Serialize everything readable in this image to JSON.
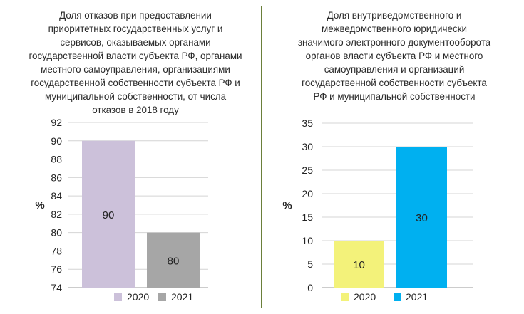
{
  "chart_data": [
    {
      "type": "bar",
      "title": "Доля отказов при предоставлении приоритетных государственных услуг и сервисов, оказываемых органами государственной власти субъекта РФ, органами местного самоуправления, организациями государственной собственности субъекта РФ и муниципальной собственности,  от числа отказов в 2018 году",
      "title_lines": [
        "Доля отказов при предоставлении",
        "приоритетных государственных услуг и",
        "сервисов, оказываемых органами",
        "государственной власти субъекта РФ, органами",
        "местного самоуправления, организациями",
        "государственной собственности субъекта РФ и",
        "муниципальной собственности,  от числа",
        "отказов в 2018 году"
      ],
      "ylabel": "%",
      "ylim": [
        74,
        92
      ],
      "yticks": [
        "92",
        "90",
        "88",
        "86",
        "84",
        "82",
        "80",
        "78",
        "76",
        "74"
      ],
      "series": [
        {
          "name": "2020",
          "value": 90,
          "label": "90",
          "color": "#ccc1da"
        },
        {
          "name": "2021",
          "value": 80,
          "label": "80",
          "color": "#a6a6a6"
        }
      ],
      "grid": true
    },
    {
      "type": "bar",
      "title": "Доля внутриведомственного  и межведомственного юридически значимого электронного документооборота органов власти субъекта РФ и местного самоуправления и организаций государственной собственности субъекта РФ и муниципальной собственности",
      "title_lines": [
        "Доля внутриведомственного  и",
        "межведомственного юридически",
        "значимого электронного документооборота",
        "органов власти субъекта РФ и местного",
        "самоуправления и организаций",
        "государственной собственности субъекта",
        "РФ и муниципальной собственности"
      ],
      "ylabel": "%",
      "ylim": [
        0,
        35
      ],
      "yticks": [
        "35",
        "30",
        "25",
        "20",
        "15",
        "10",
        "5",
        "0"
      ],
      "series": [
        {
          "name": "2020",
          "value": 10,
          "label": "10",
          "color": "#f3f27a"
        },
        {
          "name": "2021",
          "value": 30,
          "label": "30",
          "color": "#00b0f0"
        }
      ],
      "grid": true
    }
  ]
}
